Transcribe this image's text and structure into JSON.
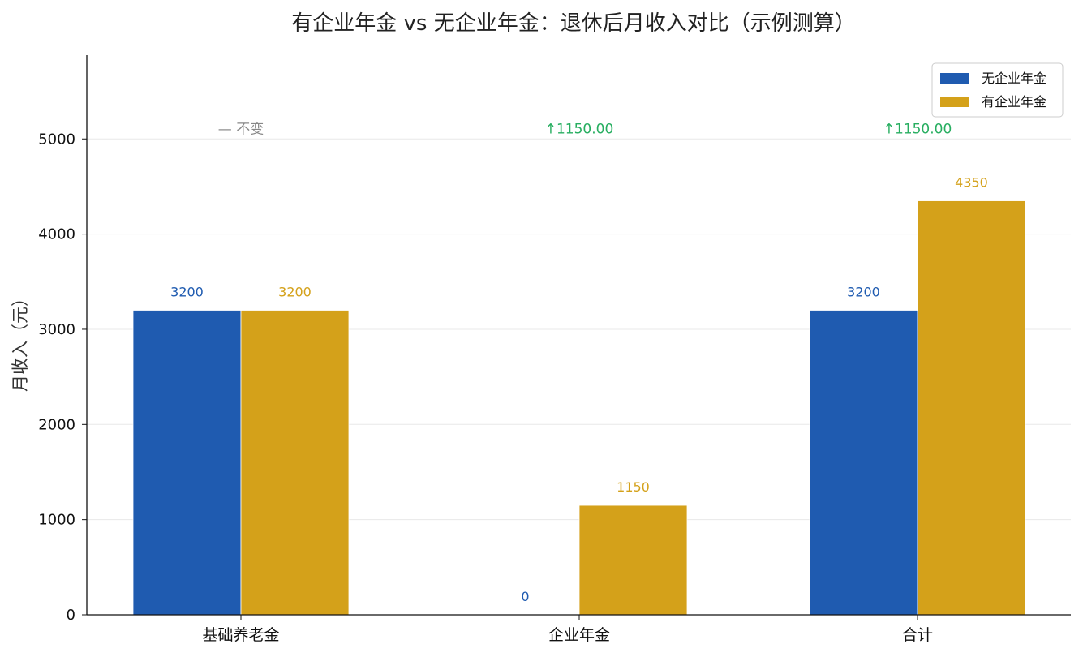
{
  "chart_data": {
    "type": "bar",
    "title": "有企业年金 vs 无企业年金：退休后月收入对比（示例测算）",
    "xlabel": "",
    "ylabel": "月收入（元）",
    "categories": [
      "基础养老金",
      "企业年金",
      "合计"
    ],
    "series": [
      {
        "name": "无企业年金",
        "values": [
          3200,
          0,
          3200
        ],
        "color": "#1f5bb0"
      },
      {
        "name": "有企业年金",
        "values": [
          3200,
          1150,
          4350
        ],
        "color": "#d4a11a"
      }
    ],
    "data_labels": [
      [
        "3200",
        "0",
        "3200"
      ],
      [
        "3200",
        "1150",
        "4350"
      ]
    ],
    "annotations": [
      {
        "text": "— 不变",
        "color": "#888888"
      },
      {
        "text": "↑1150.00",
        "color": "#27ae60"
      },
      {
        "text": "↑1150.00",
        "color": "#27ae60"
      }
    ],
    "yticks": [
      0,
      1000,
      2000,
      3000,
      4000,
      5000
    ],
    "ylim": [
      0,
      5880
    ],
    "grid": true,
    "legend_position": "top-right"
  }
}
